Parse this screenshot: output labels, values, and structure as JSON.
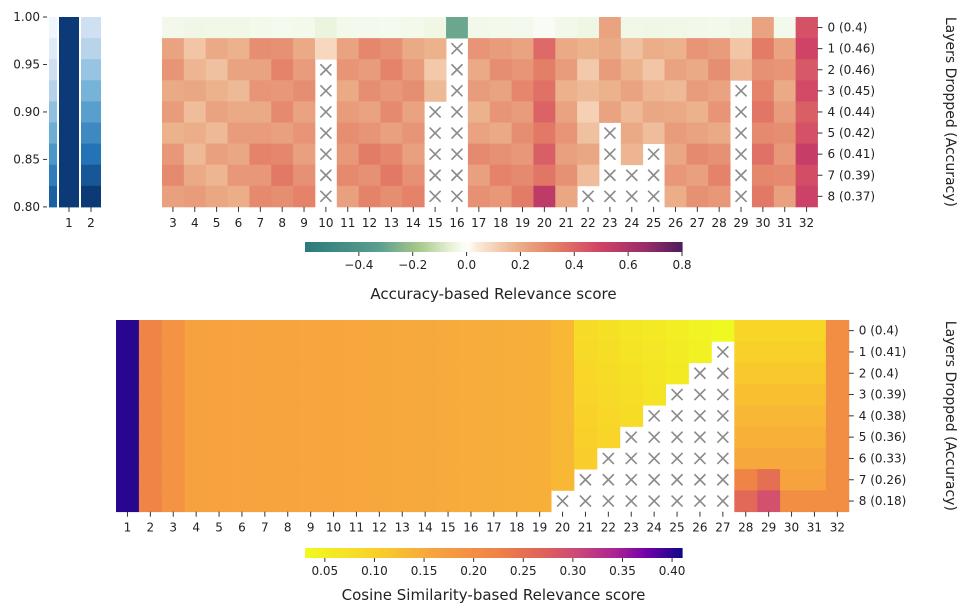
{
  "chart_data": [
    {
      "type": "heatmap",
      "panel": "accuracy",
      "side_bars": {
        "y_ticks": [
          "1.00",
          "0.95",
          "0.90",
          "0.85",
          "0.80"
        ],
        "ylim": [
          0.8,
          1.0
        ],
        "columns": [
          "1",
          "2"
        ],
        "colormap": "Blues"
      },
      "columns": [
        "3",
        "4",
        "5",
        "6",
        "7",
        "8",
        "9",
        "10",
        "11",
        "12",
        "13",
        "14",
        "15",
        "16",
        "17",
        "18",
        "19",
        "20",
        "21",
        "22",
        "23",
        "24",
        "25",
        "26",
        "27",
        "28",
        "29",
        "30",
        "31",
        "32"
      ],
      "rows": [
        "0 (0.4)",
        "1 (0.46)",
        "2 (0.46)",
        "3 (0.45)",
        "4 (0.44)",
        "5 (0.42)",
        "6 (0.41)",
        "7 (0.39)",
        "8 (0.37)"
      ],
      "dropped_mark": "×",
      "column_scores": [
        0.22,
        0.17,
        0.18,
        0.2,
        0.24,
        0.27,
        0.24,
        0.06,
        0.24,
        0.26,
        0.27,
        0.24,
        0.16,
        -0.1,
        0.22,
        0.24,
        0.26,
        0.36,
        0.22,
        0.14,
        0.2,
        0.18,
        0.17,
        0.2,
        0.22,
        0.24,
        0.17,
        0.31,
        0.24,
        0.45
      ],
      "drop_start": [
        99,
        99,
        99,
        99,
        99,
        99,
        99,
        2,
        99,
        99,
        99,
        99,
        4,
        1,
        99,
        99,
        99,
        99,
        99,
        8,
        5,
        7,
        6,
        99,
        99,
        99,
        3,
        99,
        99,
        99
      ],
      "ylabel": "Layers Dropped (Accuracy)",
      "colorbar": {
        "label": "Accuracy-based Relevance score",
        "ticks": [
          "−0.4",
          "−0.2",
          "0.0",
          "0.2",
          "0.4",
          "0.6",
          "0.8"
        ],
        "range": [
          -0.6,
          0.8
        ]
      }
    },
    {
      "type": "heatmap",
      "panel": "cosine",
      "columns": [
        "1",
        "2",
        "3",
        "4",
        "5",
        "6",
        "7",
        "8",
        "9",
        "10",
        "11",
        "12",
        "13",
        "14",
        "15",
        "16",
        "17",
        "18",
        "19",
        "20",
        "21",
        "22",
        "23",
        "24",
        "25",
        "26",
        "27",
        "28",
        "29",
        "30",
        "31",
        "32"
      ],
      "rows": [
        "0 (0.4)",
        "1 (0.41)",
        "2 (0.4)",
        "3 (0.39)",
        "4 (0.38)",
        "5 (0.36)",
        "6 (0.33)",
        "7 (0.26)",
        "8 (0.18)"
      ],
      "dropped_mark": "×",
      "drop_start": [
        99,
        99,
        99,
        99,
        99,
        99,
        99,
        99,
        99,
        99,
        99,
        99,
        99,
        99,
        99,
        99,
        99,
        99,
        99,
        8,
        7,
        6,
        5,
        4,
        3,
        2,
        1,
        99,
        99,
        99,
        99,
        99
      ],
      "ylabel": "Layers Dropped (Accuracy)",
      "colorbar": {
        "label": "Cosine Similarity-based Relevance score",
        "ticks": [
          "0.05",
          "0.10",
          "0.15",
          "0.20",
          "0.25",
          "0.30",
          "0.35",
          "0.40"
        ],
        "range": [
          0.03,
          0.41
        ]
      }
    }
  ]
}
